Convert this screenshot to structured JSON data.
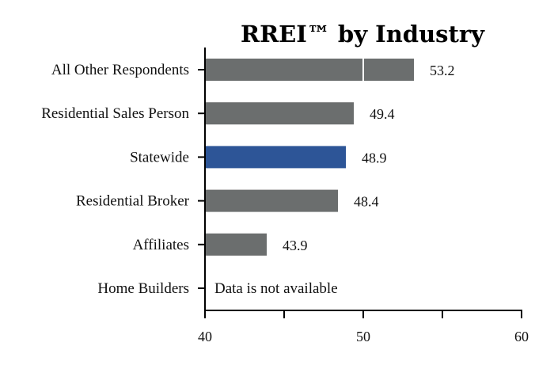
{
  "chart_data": {
    "type": "bar",
    "orientation": "horizontal",
    "title": "RREI™ by Industry",
    "xlabel": "",
    "ylabel": "",
    "xlim": [
      40,
      60
    ],
    "x_ticks": [
      "40",
      "50",
      "60"
    ],
    "grid": false,
    "categories": [
      "All Other Respondents",
      "Residential Sales Person",
      "Statewide",
      "Residential Broker",
      "Affiliates",
      "Home Builders"
    ],
    "values": [
      53.2,
      49.4,
      48.9,
      48.4,
      43.9,
      null
    ],
    "value_labels": [
      "53.2",
      "49.4",
      "48.9",
      "48.4",
      "43.9",
      ""
    ],
    "unavailable_note": "Data is not available",
    "colors": {
      "default": "#6b6e6e",
      "highlight": "#2d5597",
      "highlight_category": "Statewide"
    }
  }
}
